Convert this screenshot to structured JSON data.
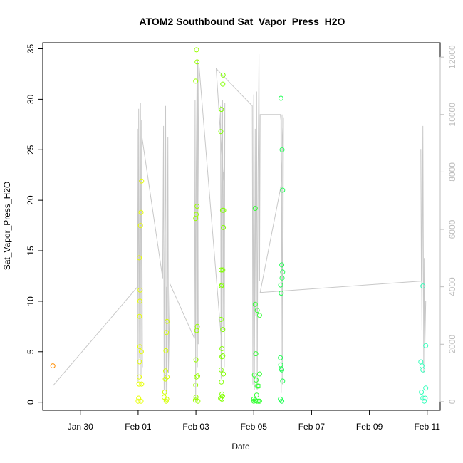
{
  "chart_data": {
    "type": "scatter",
    "title": "ATOM2 Southbound Sat_Vapor_Press_H2O",
    "xlabel": "Date",
    "ylabel": "Sat_Vapor_Press_H2O",
    "x_ticks": [
      "Jan 30",
      "Feb 01",
      "Feb 03",
      "Feb 05",
      "Feb 07",
      "Feb 09",
      "Feb 11"
    ],
    "x_tick_values_days": [
      0,
      2,
      4,
      6,
      8,
      10,
      12
    ],
    "xlim_days": [
      -1.3,
      12.45
    ],
    "y_ticks": [
      0,
      5,
      10,
      15,
      20,
      25,
      30,
      35
    ],
    "ylim": [
      -0.8,
      35.6
    ],
    "y2_ticks": [
      0,
      2000,
      4000,
      6000,
      8000,
      10000,
      12000
    ],
    "y2lim": [
      -300,
      12500
    ],
    "grid": false,
    "point_series": {
      "name": "Sat_Vapor_Press_H2O",
      "points": [
        {
          "x": -0.95,
          "y": 3.6,
          "color": "#ff8c00"
        },
        {
          "x": 2.0,
          "y": 0.1,
          "color": "#e6ff00"
        },
        {
          "x": 2.02,
          "y": 0.4,
          "color": "#e6ff00"
        },
        {
          "x": 2.03,
          "y": 1.8,
          "color": "#e6ff00"
        },
        {
          "x": 2.04,
          "y": 2.5,
          "color": "#e6ff00"
        },
        {
          "x": 2.05,
          "y": 4.0,
          "color": "#e6ff00"
        },
        {
          "x": 2.06,
          "y": 5.5,
          "color": "#e6ff00"
        },
        {
          "x": 2.05,
          "y": 8.5,
          "color": "#e6ff00"
        },
        {
          "x": 2.06,
          "y": 10.0,
          "color": "#e6ff00"
        },
        {
          "x": 2.07,
          "y": 11.1,
          "color": "#e6ff00"
        },
        {
          "x": 2.04,
          "y": 14.3,
          "color": "#e6ff00"
        },
        {
          "x": 2.08,
          "y": 17.5,
          "color": "#e6ff00"
        },
        {
          "x": 2.1,
          "y": 18.8,
          "color": "#e6ff00"
        },
        {
          "x": 2.12,
          "y": 21.9,
          "color": "#e6ff00"
        },
        {
          "x": 2.11,
          "y": 5.0,
          "color": "#e6ff00"
        },
        {
          "x": 2.1,
          "y": 0.1,
          "color": "#e6ff00"
        },
        {
          "x": 2.12,
          "y": 1.8,
          "color": "#e6ff00"
        },
        {
          "x": 2.9,
          "y": 0.5,
          "color": "#d4ff00"
        },
        {
          "x": 2.92,
          "y": 1.0,
          "color": "#d4ff00"
        },
        {
          "x": 2.94,
          "y": 2.3,
          "color": "#d4ff00"
        },
        {
          "x": 2.95,
          "y": 3.1,
          "color": "#d4ff00"
        },
        {
          "x": 2.96,
          "y": 5.1,
          "color": "#d4ff00"
        },
        {
          "x": 2.98,
          "y": 6.9,
          "color": "#d4ff00"
        },
        {
          "x": 3.0,
          "y": 8.0,
          "color": "#d4ff00"
        },
        {
          "x": 2.97,
          "y": 0.1,
          "color": "#d4ff00"
        },
        {
          "x": 2.99,
          "y": 0.3,
          "color": "#d4ff00"
        },
        {
          "x": 3.0,
          "y": 2.5,
          "color": "#d4ff00"
        },
        {
          "x": 3.98,
          "y": 0.2,
          "color": "#99ff00"
        },
        {
          "x": 4.0,
          "y": 0.5,
          "color": "#99ff00"
        },
        {
          "x": 3.99,
          "y": 1.7,
          "color": "#99ff00"
        },
        {
          "x": 4.02,
          "y": 2.5,
          "color": "#99ff00"
        },
        {
          "x": 4.0,
          "y": 4.2,
          "color": "#99ff00"
        },
        {
          "x": 4.03,
          "y": 7.1,
          "color": "#99ff00"
        },
        {
          "x": 4.05,
          "y": 7.5,
          "color": "#99ff00"
        },
        {
          "x": 3.99,
          "y": 18.2,
          "color": "#99ff00"
        },
        {
          "x": 4.01,
          "y": 18.6,
          "color": "#99ff00"
        },
        {
          "x": 4.04,
          "y": 19.4,
          "color": "#99ff00"
        },
        {
          "x": 3.99,
          "y": 31.8,
          "color": "#99ff00"
        },
        {
          "x": 4.04,
          "y": 33.7,
          "color": "#99ff00"
        },
        {
          "x": 4.02,
          "y": 34.9,
          "color": "#99ff00"
        },
        {
          "x": 4.07,
          "y": 0.1,
          "color": "#99ff00"
        },
        {
          "x": 4.06,
          "y": 2.6,
          "color": "#99ff00"
        },
        {
          "x": 4.85,
          "y": 0.4,
          "color": "#80ff00"
        },
        {
          "x": 4.9,
          "y": 0.3,
          "color": "#80ff00"
        },
        {
          "x": 4.92,
          "y": 0.6,
          "color": "#80ff00"
        },
        {
          "x": 4.88,
          "y": 2.0,
          "color": "#80ff00"
        },
        {
          "x": 4.95,
          "y": 2.8,
          "color": "#80ff00"
        },
        {
          "x": 4.87,
          "y": 3.2,
          "color": "#80ff00"
        },
        {
          "x": 4.9,
          "y": 4.5,
          "color": "#80ff00"
        },
        {
          "x": 4.93,
          "y": 4.6,
          "color": "#80ff00"
        },
        {
          "x": 4.9,
          "y": 5.3,
          "color": "#80ff00"
        },
        {
          "x": 4.93,
          "y": 7.2,
          "color": "#80ff00"
        },
        {
          "x": 4.87,
          "y": 8.2,
          "color": "#80ff00"
        },
        {
          "x": 4.88,
          "y": 11.5,
          "color": "#80ff00"
        },
        {
          "x": 4.9,
          "y": 11.6,
          "color": "#80ff00"
        },
        {
          "x": 4.87,
          "y": 13.1,
          "color": "#80ff00"
        },
        {
          "x": 4.93,
          "y": 13.1,
          "color": "#80ff00"
        },
        {
          "x": 4.95,
          "y": 17.3,
          "color": "#80ff00"
        },
        {
          "x": 4.92,
          "y": 19.0,
          "color": "#80ff00"
        },
        {
          "x": 4.96,
          "y": 19.0,
          "color": "#80ff00"
        },
        {
          "x": 4.86,
          "y": 26.8,
          "color": "#80ff00"
        },
        {
          "x": 4.88,
          "y": 29.0,
          "color": "#80ff00"
        },
        {
          "x": 4.93,
          "y": 31.5,
          "color": "#80ff00"
        },
        {
          "x": 4.94,
          "y": 32.4,
          "color": "#80ff00"
        },
        {
          "x": 4.9,
          "y": 0.8,
          "color": "#80ff00"
        },
        {
          "x": 6.0,
          "y": 0.1,
          "color": "#33ff33"
        },
        {
          "x": 6.05,
          "y": 0.2,
          "color": "#33ff33"
        },
        {
          "x": 6.1,
          "y": 0.1,
          "color": "#33ff33"
        },
        {
          "x": 6.15,
          "y": 0.1,
          "color": "#33ff33"
        },
        {
          "x": 6.2,
          "y": 0.1,
          "color": "#33ff33"
        },
        {
          "x": 6.1,
          "y": 0.7,
          "color": "#33ff33"
        },
        {
          "x": 6.12,
          "y": 1.6,
          "color": "#33ff33"
        },
        {
          "x": 6.17,
          "y": 1.6,
          "color": "#33ff33"
        },
        {
          "x": 6.08,
          "y": 2.2,
          "color": "#33ff33"
        },
        {
          "x": 6.02,
          "y": 2.7,
          "color": "#33ff33"
        },
        {
          "x": 6.2,
          "y": 2.8,
          "color": "#33ff33"
        },
        {
          "x": 6.07,
          "y": 4.8,
          "color": "#33ff33"
        },
        {
          "x": 6.12,
          "y": 9.1,
          "color": "#33ff33"
        },
        {
          "x": 6.2,
          "y": 8.6,
          "color": "#33ff33"
        },
        {
          "x": 6.05,
          "y": 9.7,
          "color": "#33ff33"
        },
        {
          "x": 6.05,
          "y": 19.2,
          "color": "#33ff33"
        },
        {
          "x": 6.0,
          "y": 0.3,
          "color": "#33ff33"
        },
        {
          "x": 6.92,
          "y": 0.3,
          "color": "#22ff55"
        },
        {
          "x": 6.97,
          "y": 0.1,
          "color": "#22ff55"
        },
        {
          "x": 6.92,
          "y": 4.4,
          "color": "#22ff55"
        },
        {
          "x": 6.95,
          "y": 3.3,
          "color": "#22ff55"
        },
        {
          "x": 6.93,
          "y": 3.7,
          "color": "#22ff55"
        },
        {
          "x": 6.97,
          "y": 3.2,
          "color": "#22ff55"
        },
        {
          "x": 7.0,
          "y": 2.1,
          "color": "#22ff55"
        },
        {
          "x": 6.95,
          "y": 10.8,
          "color": "#22ff55"
        },
        {
          "x": 6.93,
          "y": 11.6,
          "color": "#22ff55"
        },
        {
          "x": 6.98,
          "y": 12.3,
          "color": "#22ff55"
        },
        {
          "x": 7.0,
          "y": 12.9,
          "color": "#22ff55"
        },
        {
          "x": 6.97,
          "y": 13.6,
          "color": "#22ff55"
        },
        {
          "x": 6.98,
          "y": 25.0,
          "color": "#22ff55"
        },
        {
          "x": 7.0,
          "y": 21.0,
          "color": "#22ff55"
        },
        {
          "x": 6.94,
          "y": 30.1,
          "color": "#22ff55"
        },
        {
          "x": 11.78,
          "y": 4.0,
          "color": "#33ffbb"
        },
        {
          "x": 11.82,
          "y": 3.6,
          "color": "#33ffbb"
        },
        {
          "x": 11.85,
          "y": 3.2,
          "color": "#33ffbb"
        },
        {
          "x": 11.8,
          "y": 1.0,
          "color": "#33ffbb"
        },
        {
          "x": 11.85,
          "y": 0.4,
          "color": "#33ffbb"
        },
        {
          "x": 11.9,
          "y": 0.1,
          "color": "#33ffbb"
        },
        {
          "x": 11.93,
          "y": 0.4,
          "color": "#33ffbb"
        },
        {
          "x": 11.95,
          "y": 1.4,
          "color": "#33ffbb"
        },
        {
          "x": 11.95,
          "y": 5.6,
          "color": "#33ffbb"
        },
        {
          "x": 11.85,
          "y": 11.5,
          "color": "#33ffbb"
        }
      ]
    },
    "line_series": {
      "name": "",
      "axis": "right",
      "color": "#c8c8c8",
      "points": [
        [
          -0.95,
          550
        ],
        [
          1.98,
          4000
        ],
        [
          1.98,
          9500
        ],
        [
          2.0,
          700
        ],
        [
          2.02,
          10200
        ],
        [
          2.05,
          1500
        ],
        [
          2.08,
          10400
        ],
        [
          2.1,
          800
        ],
        [
          2.12,
          9800
        ],
        [
          2.15,
          1200
        ],
        [
          2.12,
          9300
        ],
        [
          2.85,
          4300
        ],
        [
          2.88,
          9600
        ],
        [
          2.9,
          400
        ],
        [
          2.92,
          5000
        ],
        [
          2.95,
          10300
        ],
        [
          2.97,
          300
        ],
        [
          2.99,
          4000
        ],
        [
          3.0,
          200
        ],
        [
          3.02,
          6500
        ],
        [
          3.03,
          9200
        ],
        [
          3.05,
          1000
        ],
        [
          3.1,
          4100
        ],
        [
          3.95,
          2200
        ],
        [
          3.97,
          10500
        ],
        [
          3.99,
          0
        ],
        [
          4.01,
          8000
        ],
        [
          4.04,
          11700
        ],
        [
          4.05,
          1200
        ],
        [
          4.06,
          11900
        ],
        [
          4.08,
          2000
        ],
        [
          4.07,
          6500
        ],
        [
          4.1,
          11800
        ],
        [
          4.9,
          1900
        ],
        [
          4.85,
          10300
        ],
        [
          4.87,
          800
        ],
        [
          4.9,
          6800
        ],
        [
          4.92,
          10500
        ],
        [
          4.94,
          2500
        ],
        [
          4.96,
          8000
        ],
        [
          4.98,
          1200
        ],
        [
          5.0,
          10400
        ],
        [
          4.97,
          7500
        ],
        [
          4.7,
          11600
        ],
        [
          5.95,
          10300
        ],
        [
          5.97,
          600
        ],
        [
          6.0,
          10700
        ],
        [
          6.02,
          400
        ],
        [
          6.05,
          9500
        ],
        [
          6.07,
          3000
        ],
        [
          6.1,
          10800
        ],
        [
          6.12,
          400
        ],
        [
          6.15,
          8000
        ],
        [
          6.18,
          12100
        ],
        [
          6.2,
          4200
        ],
        [
          6.22,
          10000
        ],
        [
          6.92,
          10000
        ],
        [
          6.94,
          9800
        ],
        [
          6.95,
          300
        ],
        [
          6.97,
          7000
        ],
        [
          6.98,
          10000
        ],
        [
          7.0,
          600
        ],
        [
          7.02,
          6500
        ],
        [
          7.03,
          9900
        ],
        [
          6.94,
          7500
        ],
        [
          6.22,
          3800
        ],
        [
          11.8,
          4200
        ],
        [
          11.78,
          8800
        ],
        [
          11.82,
          2500
        ],
        [
          11.85,
          9600
        ],
        [
          11.88,
          1000
        ],
        [
          11.9,
          5000
        ],
        [
          11.92,
          2000
        ],
        [
          11.95,
          3500
        ]
      ]
    }
  }
}
